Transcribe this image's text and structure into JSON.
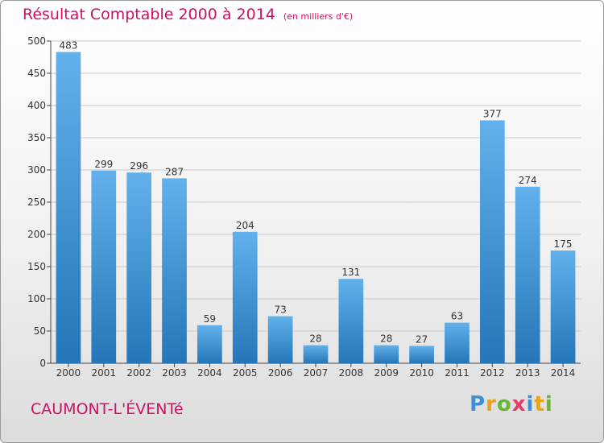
{
  "title": "Résultat Comptable 2000 à 2014",
  "unit_note": "(en milliers d'€)",
  "location": "CAUMONT-L'ÉVENTé",
  "brand": {
    "letters": [
      "P",
      "r",
      "o",
      "x",
      "i",
      "t",
      "i"
    ],
    "colors": [
      "#3d8fd6",
      "#e8a317",
      "#67b63a",
      "#e23e6a",
      "#3d8fd6",
      "#e8a317",
      "#67b63a"
    ]
  },
  "colors": {
    "bar": "#3a94d8",
    "title": "#cc1166",
    "grid": "#c8c8c8",
    "axis": "#444444"
  },
  "chart_data": {
    "type": "bar",
    "title": "Résultat Comptable 2000 à 2014",
    "categories": [
      "2000",
      "2001",
      "2002",
      "2003",
      "2004",
      "2005",
      "2006",
      "2007",
      "2008",
      "2009",
      "2010",
      "2011",
      "2012",
      "2013",
      "2014"
    ],
    "values": [
      483,
      299,
      296,
      287,
      59,
      204,
      73,
      28,
      131,
      28,
      27,
      63,
      377,
      274,
      175
    ],
    "ylim": [
      0,
      500
    ],
    "yticks": [
      0,
      50,
      100,
      150,
      200,
      250,
      300,
      350,
      400,
      450,
      500
    ],
    "grid": true,
    "xlabel": "",
    "ylabel": ""
  }
}
